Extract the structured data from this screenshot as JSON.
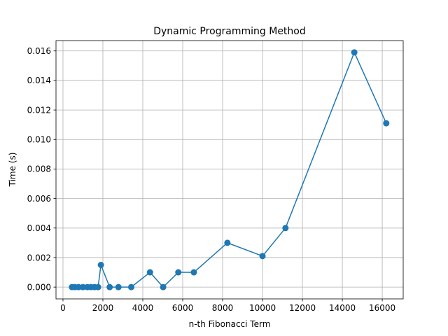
{
  "chart_data": {
    "type": "line",
    "title": "Dynamic Programming Method",
    "xlabel": "n-th Fibonacci Term",
    "ylabel": "Time (s)",
    "xlim": [
      -350,
      17050
    ],
    "ylim": [
      -0.0008,
      0.0167
    ],
    "xticks": [
      0,
      2000,
      4000,
      6000,
      8000,
      10000,
      12000,
      14000,
      16000
    ],
    "yticks": [
      0.0,
      0.002,
      0.004,
      0.006,
      0.008,
      0.01,
      0.012,
      0.014,
      0.016
    ],
    "xtick_labels": [
      "0",
      "2000",
      "4000",
      "6000",
      "8000",
      "10000",
      "12000",
      "14000",
      "16000"
    ],
    "ytick_labels": [
      "0.000",
      "0.002",
      "0.004",
      "0.006",
      "0.008",
      "0.010",
      "0.012",
      "0.014",
      "0.016"
    ],
    "grid": true,
    "series": [
      {
        "color": "#1f77b4",
        "marker": "circle",
        "points": [
          {
            "x": 450,
            "y": 0.0
          },
          {
            "x": 600,
            "y": 0.0
          },
          {
            "x": 780,
            "y": 0.0
          },
          {
            "x": 1000,
            "y": 0.0
          },
          {
            "x": 1220,
            "y": 0.0
          },
          {
            "x": 1400,
            "y": 0.0
          },
          {
            "x": 1580,
            "y": 0.0
          },
          {
            "x": 1760,
            "y": 0.0
          },
          {
            "x": 1900,
            "y": 0.0015
          },
          {
            "x": 2340,
            "y": 0.0
          },
          {
            "x": 2780,
            "y": 0.0
          },
          {
            "x": 3420,
            "y": 0.0
          },
          {
            "x": 4360,
            "y": 0.001
          },
          {
            "x": 5020,
            "y": 0.0
          },
          {
            "x": 5780,
            "y": 0.001
          },
          {
            "x": 6560,
            "y": 0.001
          },
          {
            "x": 8240,
            "y": 0.003
          },
          {
            "x": 10000,
            "y": 0.0021
          },
          {
            "x": 11150,
            "y": 0.004
          },
          {
            "x": 14600,
            "y": 0.0159
          },
          {
            "x": 16200,
            "y": 0.0111
          }
        ]
      }
    ]
  }
}
